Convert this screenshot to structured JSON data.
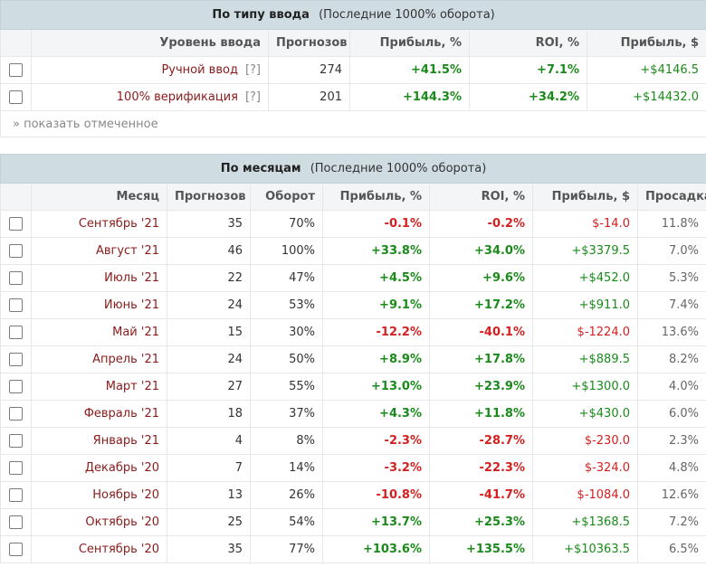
{
  "by_input": {
    "title": "По типу ввода",
    "subtitle": "(Последние 1000% оборота)",
    "headers": [
      "Уровень ввода",
      "Прогнозов",
      "Прибыль, %",
      "ROI, %",
      "Прибыль, $"
    ],
    "rows": [
      {
        "level": "Ручной ввод",
        "help": "[?]",
        "forecasts": "274",
        "profit_pct": "+41.5%",
        "roi": "+7.1%",
        "profit_usd": "+$4146.5"
      },
      {
        "level": "100% верификация",
        "help": "[?]",
        "forecasts": "201",
        "profit_pct": "+144.3%",
        "roi": "+34.2%",
        "profit_usd": "+$14432.0"
      }
    ],
    "show_selected": "» показать отмеченное"
  },
  "by_month": {
    "title": "По месяцам",
    "subtitle": "(Последние 1000% оборота)",
    "headers": [
      "Месяц",
      "Прогнозов",
      "Оборот",
      "Прибыль, %",
      "ROI, %",
      "Прибыль, $",
      "Просадка"
    ],
    "rows": [
      {
        "month": "Сентябрь '21",
        "forecasts": "35",
        "turnover": "70%",
        "profit_pct": "-0.1%",
        "roi": "-0.2%",
        "profit_usd": "$-14.0",
        "drawdown": "11.8%"
      },
      {
        "month": "Август '21",
        "forecasts": "46",
        "turnover": "100%",
        "profit_pct": "+33.8%",
        "roi": "+34.0%",
        "profit_usd": "+$3379.5",
        "drawdown": "7.0%"
      },
      {
        "month": "Июль '21",
        "forecasts": "22",
        "turnover": "47%",
        "profit_pct": "+4.5%",
        "roi": "+9.6%",
        "profit_usd": "+$452.0",
        "drawdown": "5.3%"
      },
      {
        "month": "Июнь '21",
        "forecasts": "24",
        "turnover": "53%",
        "profit_pct": "+9.1%",
        "roi": "+17.2%",
        "profit_usd": "+$911.0",
        "drawdown": "7.4%"
      },
      {
        "month": "Май '21",
        "forecasts": "15",
        "turnover": "30%",
        "profit_pct": "-12.2%",
        "roi": "-40.1%",
        "profit_usd": "$-1224.0",
        "drawdown": "13.6%"
      },
      {
        "month": "Апрель '21",
        "forecasts": "24",
        "turnover": "50%",
        "profit_pct": "+8.9%",
        "roi": "+17.8%",
        "profit_usd": "+$889.5",
        "drawdown": "8.2%"
      },
      {
        "month": "Март '21",
        "forecasts": "27",
        "turnover": "55%",
        "profit_pct": "+13.0%",
        "roi": "+23.9%",
        "profit_usd": "+$1300.0",
        "drawdown": "4.0%"
      },
      {
        "month": "Февраль '21",
        "forecasts": "18",
        "turnover": "37%",
        "profit_pct": "+4.3%",
        "roi": "+11.8%",
        "profit_usd": "+$430.0",
        "drawdown": "6.0%"
      },
      {
        "month": "Январь '21",
        "forecasts": "4",
        "turnover": "8%",
        "profit_pct": "-2.3%",
        "roi": "-28.7%",
        "profit_usd": "$-230.0",
        "drawdown": "2.3%"
      },
      {
        "month": "Декабрь '20",
        "forecasts": "7",
        "turnover": "14%",
        "profit_pct": "-3.2%",
        "roi": "-22.3%",
        "profit_usd": "$-324.0",
        "drawdown": "4.8%"
      },
      {
        "month": "Ноябрь '20",
        "forecasts": "13",
        "turnover": "26%",
        "profit_pct": "-10.8%",
        "roi": "-41.7%",
        "profit_usd": "$-1084.0",
        "drawdown": "12.6%"
      },
      {
        "month": "Октябрь '20",
        "forecasts": "25",
        "turnover": "54%",
        "profit_pct": "+13.7%",
        "roi": "+25.3%",
        "profit_usd": "+$1368.5",
        "drawdown": "7.2%"
      },
      {
        "month": "Сентябрь '20",
        "forecasts": "35",
        "turnover": "77%",
        "profit_pct": "+103.6%",
        "roi": "+135.5%",
        "profit_usd": "+$10363.5",
        "drawdown": "6.5%"
      }
    ]
  },
  "colors": {
    "positive": "#1a8a1a",
    "negative": "#d42020",
    "header_bg": "#cfdde3",
    "name_color": "#8b1a1a"
  }
}
